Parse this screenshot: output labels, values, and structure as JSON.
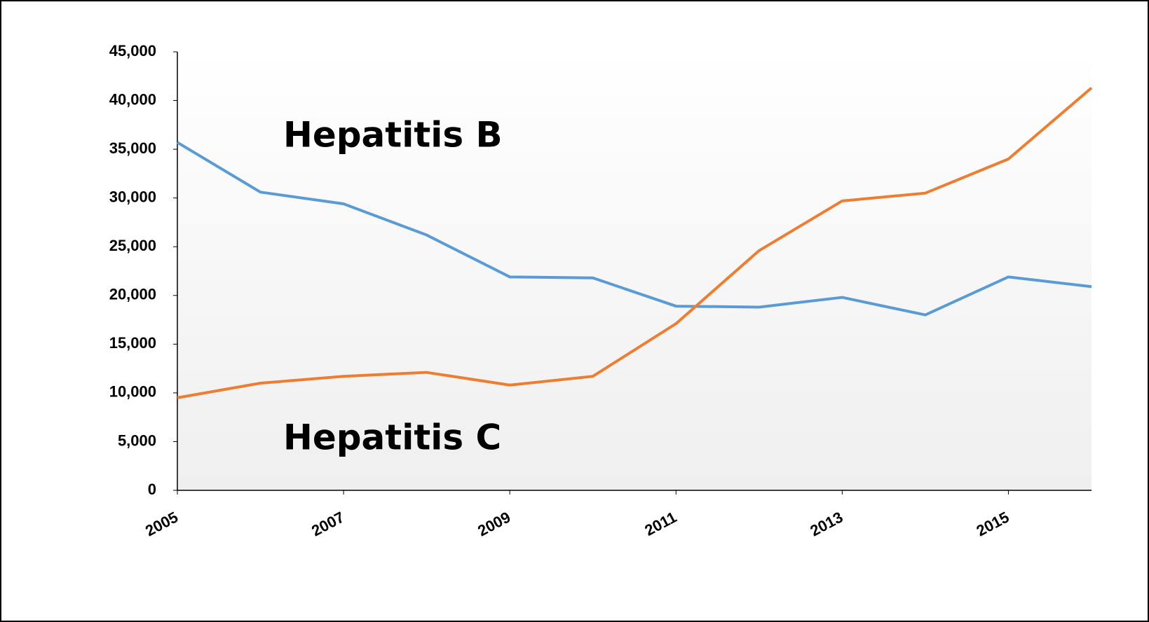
{
  "chart_data": {
    "type": "line",
    "x": [
      2005,
      2006,
      2007,
      2008,
      2009,
      2010,
      2011,
      2012,
      2013,
      2014,
      2015,
      2016
    ],
    "series": [
      {
        "name": "Hepatitis B",
        "color": "#5b9bd5",
        "values": [
          35700,
          30600,
          29400,
          26200,
          21900,
          21800,
          18900,
          18800,
          19800,
          18000,
          21900,
          20900
        ]
      },
      {
        "name": "Hepatitis C",
        "color": "#ed7d31",
        "values": [
          9500,
          11000,
          11700,
          12100,
          10800,
          11700,
          17100,
          24600,
          29700,
          30500,
          34000,
          41300
        ]
      }
    ],
    "xlim": [
      2005,
      2016
    ],
    "xticks": [
      2005,
      2007,
      2009,
      2011,
      2013,
      2015
    ],
    "ylim": [
      0,
      45000
    ],
    "yticks": [
      0,
      {
        "value": 5000,
        "label": "5,000"
      },
      {
        "value": 10000,
        "label": "10,000"
      },
      {
        "value": 15000,
        "label": "15,000"
      },
      {
        "value": 20000,
        "label": "20,000"
      },
      {
        "value": 25000,
        "label": "25,000"
      },
      {
        "value": 30000,
        "label": "30,000"
      },
      {
        "value": 35000,
        "label": "35,000"
      },
      {
        "value": 40000,
        "label": "40,000"
      },
      {
        "value": 45000,
        "label": "45,000"
      }
    ]
  }
}
